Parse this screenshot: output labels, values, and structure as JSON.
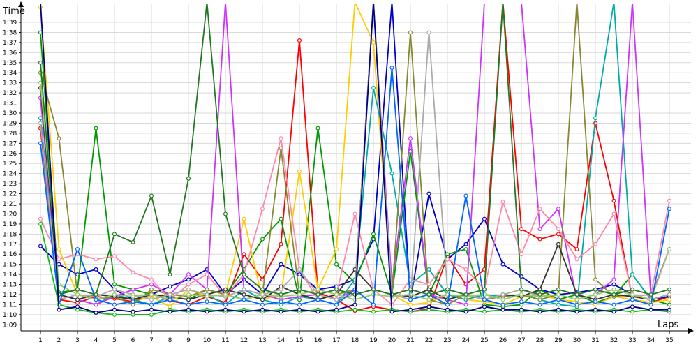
{
  "chart_data": {
    "type": "line",
    "xlabel": "Laps",
    "ylabel": "Time",
    "x": [
      1,
      2,
      3,
      4,
      5,
      6,
      7,
      8,
      9,
      10,
      11,
      12,
      13,
      14,
      15,
      16,
      17,
      18,
      19,
      20,
      21,
      22,
      23,
      24,
      25,
      26,
      27,
      28,
      29,
      30,
      31,
      32,
      33,
      34,
      35
    ],
    "y_ticks": [
      "1:09",
      "1:10",
      "1:11",
      "1:12",
      "1:13",
      "1:14",
      "1:15",
      "1:16",
      "1:17",
      "1:18",
      "1:19",
      "1:20",
      "1:21",
      "1:22",
      "1:23",
      "1:24",
      "1:25",
      "1:26",
      "1:27",
      "1:28",
      "1:29",
      "1:30",
      "1:31",
      "1:32",
      "1:33",
      "1:34",
      "1:35",
      "1:36",
      "1:37",
      "1:38",
      "1:39"
    ],
    "ylim": [
      68.4,
      100.8
    ],
    "grid": true,
    "legend": "none",
    "series": [
      {
        "color": "#ff0000",
        "values": [
          88.5,
          71.5,
          71.2,
          71.8,
          71.6,
          71.3,
          72.1,
          71.4,
          71.0,
          71.8,
          71.2,
          76.0,
          73.5,
          77.0,
          97.2,
          72.2,
          71.5,
          70.4,
          70.8,
          70.5,
          70.3,
          70.6,
          75.8,
          73.0,
          74.5,
          101,
          78.5,
          77.5,
          78.0,
          76.5,
          89.0,
          81.3,
          71.5,
          71.2,
          71.8
        ]
      },
      {
        "color": "#0000cc",
        "values": [
          76.8,
          75.0,
          74.0,
          74.5,
          72.5,
          71.5,
          72.0,
          72.8,
          73.5,
          74.5,
          72.0,
          73.5,
          72.0,
          75.0,
          74.0,
          72.5,
          72.8,
          73.5,
          77.5,
          101,
          71.5,
          82.0,
          75.5,
          77.0,
          79.5,
          75.0,
          73.8,
          72.5,
          72.0,
          72.2,
          72.5,
          73.0,
          72.0,
          71.5,
          71.8
        ]
      },
      {
        "color": "#009900",
        "values": [
          98.0,
          72.2,
          72.5,
          88.5,
          73.0,
          72.5,
          72.0,
          71.8,
          71.5,
          72.5,
          72.0,
          74.5,
          77.5,
          79.5,
          71.5,
          88.5,
          75.0,
          73.2,
          78.0,
          72.0,
          86.2,
          72.0,
          76.0,
          76.5,
          71.0,
          70.8,
          71.0,
          72.5,
          71.5,
          72.0,
          71.2,
          71.8,
          74.0,
          71.5,
          71.0
        ]
      },
      {
        "color": "#ffcc00",
        "values": [
          100.5,
          76.5,
          72.0,
          71.5,
          71.0,
          71.3,
          71.8,
          70.8,
          72.5,
          71.8,
          72.0,
          79.5,
          71.5,
          72.0,
          84.2,
          72.5,
          76.5,
          101,
          97.0,
          72.0,
          71.0,
          71.2,
          72.0,
          71.5,
          71.3,
          71.0,
          71.8,
          72.0,
          71.5,
          71.3,
          71.0,
          71.8,
          71.5,
          71.2,
          71.5
        ]
      },
      {
        "color": "#00aaaa",
        "values": [
          89.5,
          72.0,
          71.5,
          71.0,
          72.0,
          71.5,
          71.0,
          71.8,
          71.5,
          72.0,
          71.0,
          72.5,
          71.5,
          71.0,
          71.8,
          71.5,
          71.0,
          73.5,
          92.5,
          84.0,
          73.0,
          74.5,
          72.0,
          71.5,
          72.0,
          71.8,
          72.0,
          71.5,
          71.0,
          70.8,
          89.5,
          101,
          74.0,
          71.5,
          72.0
        ]
      },
      {
        "color": "#cc33ff",
        "values": [
          91.5,
          72.0,
          71.5,
          71.0,
          71.8,
          72.5,
          73.0,
          72.0,
          74.0,
          72.5,
          101,
          72.5,
          72.0,
          71.5,
          71.8,
          72.0,
          71.5,
          72.5,
          101,
          73.0,
          87.5,
          72.0,
          71.5,
          71.0,
          101,
          101,
          101,
          78.5,
          80.5,
          71.5,
          72.0,
          73.5,
          101,
          71.8,
          76.5
        ]
      },
      {
        "color": "#888833",
        "values": [
          94.0,
          87.5,
          72.0,
          71.5,
          71.8,
          71.0,
          72.5,
          72.0,
          71.8,
          72.5,
          72.0,
          71.5,
          72.0,
          86.5,
          72.0,
          71.5,
          72.0,
          72.5,
          101,
          72.0,
          98.0,
          71.5,
          71.0,
          72.0,
          71.5,
          71.8,
          72.0,
          71.5,
          72.0,
          101,
          73.5,
          71.8,
          72.0,
          71.5,
          72.0
        ]
      },
      {
        "color": "#ff88aa",
        "values": [
          79.5,
          75.5,
          76.0,
          75.5,
          75.8,
          74.2,
          73.5,
          71.5,
          73.0,
          74.0,
          71.8,
          74.0,
          80.5,
          87.5,
          74.5,
          71.5,
          72.0,
          80.0,
          72.5,
          71.0,
          73.5,
          73.0,
          75.5,
          74.5,
          72.5,
          81.2,
          76.0,
          80.5,
          78.5,
          75.5,
          77.0,
          80.0,
          71.8,
          72.0,
          81.3
        ]
      },
      {
        "color": "#333333",
        "values": [
          92.5,
          72.0,
          71.5,
          72.0,
          71.8,
          71.5,
          72.0,
          71.8,
          71.5,
          72.0,
          72.5,
          72.0,
          71.5,
          72.8,
          72.0,
          71.5,
          72.0,
          74.5,
          72.5,
          72.0,
          71.8,
          72.5,
          71.5,
          72.0,
          71.5,
          72.0,
          71.8,
          72.5,
          77.0,
          72.0,
          71.5,
          72.0,
          71.8,
          71.5,
          72.0
        ]
      },
      {
        "color": "#aaaaaa",
        "values": [
          89.0,
          71.5,
          72.0,
          71.8,
          72.5,
          72.0,
          71.5,
          72.0,
          72.5,
          72.0,
          71.8,
          72.5,
          72.0,
          72.5,
          74.5,
          72.0,
          71.5,
          72.0,
          101,
          72.0,
          71.5,
          98.0,
          72.5,
          72.0,
          71.5,
          72.0,
          72.5,
          71.8,
          72.0,
          71.5,
          72.0,
          72.5,
          72.0,
          71.5,
          72.0
        ]
      },
      {
        "color": "#99cc66",
        "values": [
          93.0,
          73.0,
          72.0,
          71.5,
          72.0,
          71.8,
          72.0,
          71.5,
          72.0,
          71.8,
          72.0,
          71.5,
          72.0,
          71.8,
          72.0,
          72.5,
          72.0,
          71.5,
          72.0,
          71.8,
          72.0,
          71.5,
          72.0,
          71.8,
          72.0,
          71.5,
          72.0,
          71.8,
          72.0,
          71.5,
          72.0,
          72.5,
          72.0,
          71.5,
          76.5
        ]
      },
      {
        "color": "#0066ff",
        "values": [
          87.0,
          71.0,
          76.5,
          71.5,
          71.0,
          71.3,
          71.0,
          71.5,
          71.0,
          71.3,
          71.0,
          71.5,
          71.0,
          71.3,
          71.0,
          71.5,
          71.0,
          72.5,
          71.0,
          94.5,
          71.5,
          72.0,
          71.0,
          81.8,
          71.5,
          71.0,
          71.3,
          71.0,
          71.5,
          71.0,
          71.3,
          71.0,
          71.5,
          71.0,
          80.5
        ]
      },
      {
        "color": "#227722",
        "values": [
          95.0,
          72.0,
          72.5,
          72.0,
          78.0,
          77.2,
          81.8,
          74.0,
          83.5,
          101,
          80.0,
          74.0,
          72.5,
          72.0,
          72.5,
          72.0,
          72.5,
          72.0,
          72.5,
          72.0,
          72.5,
          72.0,
          72.5,
          72.0,
          72.5,
          101,
          72.5,
          72.0,
          72.5,
          72.0,
          72.5,
          72.0,
          72.5,
          72.0,
          72.5
        ]
      },
      {
        "color": "#11bb11",
        "values": [
          79.0,
          71.0,
          70.5,
          70.2,
          70.0,
          70.0,
          70.0,
          70.5,
          70.3,
          70.5,
          70.3,
          70.5,
          70.3,
          70.5,
          70.3,
          70.5,
          70.3,
          70.5,
          70.3,
          70.5,
          70.3,
          70.5,
          70.3,
          70.5,
          70.3,
          70.5,
          70.3,
          70.5,
          70.3,
          70.5,
          70.3,
          70.5,
          70.3,
          70.5,
          70.3
        ]
      },
      {
        "color": "#000088",
        "values": [
          101,
          70.5,
          70.8,
          70.2,
          70.5,
          70.3,
          70.5,
          70.3,
          70.5,
          70.3,
          70.5,
          70.3,
          70.5,
          70.3,
          70.5,
          70.3,
          70.5,
          71.0,
          101,
          70.3,
          70.5,
          70.8,
          70.5,
          70.3,
          70.8,
          70.5,
          70.5,
          70.3,
          70.5,
          70.3,
          70.5,
          70.3,
          70.8,
          70.5,
          70.5
        ]
      }
    ]
  }
}
